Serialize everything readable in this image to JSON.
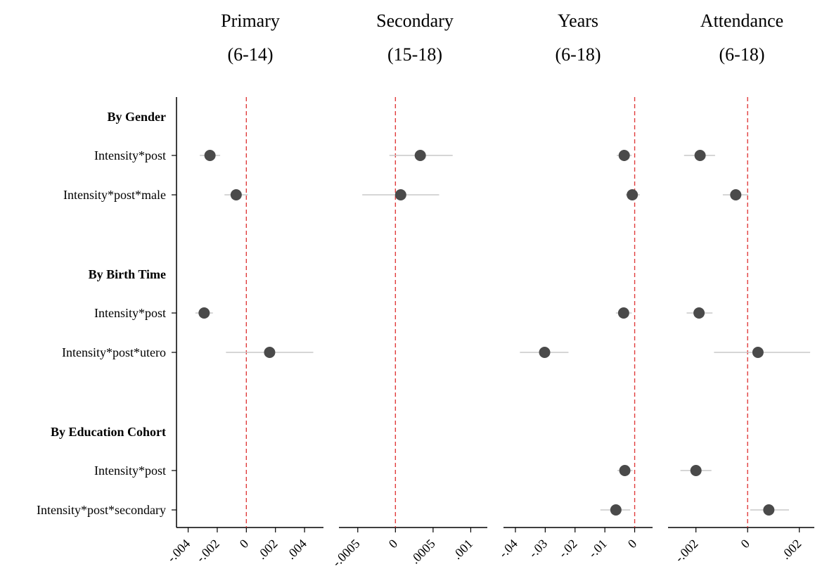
{
  "chart_data": {
    "type": "scatter",
    "description_style": "coefficient plot with confidence intervals",
    "rows": [
      {
        "label": "By Gender",
        "is_group": true
      },
      {
        "label": "Intensity*post",
        "is_group": false
      },
      {
        "label": "Intensity*post*male",
        "is_group": false
      },
      {
        "label": "By Birth Time",
        "is_group": true
      },
      {
        "label": "Intensity*post",
        "is_group": false
      },
      {
        "label": "Intensity*post*utero",
        "is_group": false
      },
      {
        "label": "By Education Cohort",
        "is_group": true
      },
      {
        "label": "Intensity*post",
        "is_group": false
      },
      {
        "label": "Intensity*post*secondary",
        "is_group": false
      }
    ],
    "reference_line": 0,
    "reference_line_color": "#e03c3c",
    "marker_color": "#4a4a4a",
    "ci_color": "#c8c8c8",
    "panels": [
      {
        "title": "Primary",
        "subtitle": "(6-14)",
        "xlim": [
          -0.0048,
          0.0053
        ],
        "ticks": [
          -0.004,
          -0.002,
          0,
          0.002,
          0.004
        ],
        "tick_labels": [
          "-.004",
          "-.002",
          "0",
          ".002",
          ".004"
        ],
        "points": [
          {
            "row": 1,
            "est": -0.0025,
            "lo": -0.0032,
            "hi": -0.0018
          },
          {
            "row": 2,
            "est": -0.0007,
            "lo": -0.0015,
            "hi": 0.0001
          },
          {
            "row": 4,
            "est": -0.0029,
            "lo": -0.0035,
            "hi": -0.0023
          },
          {
            "row": 5,
            "est": 0.0016,
            "lo": -0.0014,
            "hi": 0.0046
          }
        ]
      },
      {
        "title": "Secondary",
        "subtitle": "(15-18)",
        "xlim": [
          -0.00075,
          0.00122
        ],
        "ticks": [
          -0.0005,
          0,
          0.0005,
          0.001
        ],
        "tick_labels": [
          "-.0005",
          "0",
          ".0005",
          ".001"
        ],
        "points": [
          {
            "row": 1,
            "est": 0.00033,
            "lo": -8e-05,
            "hi": 0.00076
          },
          {
            "row": 2,
            "est": 7e-05,
            "lo": -0.00044,
            "hi": 0.00058
          }
        ]
      },
      {
        "title": "Years",
        "subtitle": "(6-18)",
        "xlim": [
          -0.044,
          0.006
        ],
        "ticks": [
          -0.04,
          -0.03,
          -0.02,
          -0.01,
          0
        ],
        "tick_labels": [
          "-.04",
          "-.03",
          "-.02",
          "-.01",
          "0"
        ],
        "points": [
          {
            "row": 1,
            "est": -0.0035,
            "lo": -0.006,
            "hi": -0.001
          },
          {
            "row": 2,
            "est": -0.0008,
            "lo": -0.003,
            "hi": 0.0017
          },
          {
            "row": 4,
            "est": -0.0037,
            "lo": -0.0063,
            "hi": -0.001
          },
          {
            "row": 5,
            "est": -0.0302,
            "lo": -0.0385,
            "hi": -0.0222
          },
          {
            "row": 7,
            "est": -0.0033,
            "lo": -0.0058,
            "hi": -0.0007
          },
          {
            "row": 8,
            "est": -0.0063,
            "lo": -0.0115,
            "hi": -0.0015
          }
        ]
      },
      {
        "title": "Attendance",
        "subtitle": "(6-18)",
        "xlim": [
          -0.00308,
          0.00258
        ],
        "ticks": [
          -0.002,
          0,
          0.002
        ],
        "tick_labels": [
          "-.002",
          "0",
          ".002"
        ],
        "points": [
          {
            "row": 1,
            "est": -0.00184,
            "lo": -0.00246,
            "hi": -0.00126
          },
          {
            "row": 2,
            "est": -0.00046,
            "lo": -0.00096,
            "hi": 2e-05
          },
          {
            "row": 4,
            "est": -0.00188,
            "lo": -0.00236,
            "hi": -0.00136
          },
          {
            "row": 5,
            "est": 0.0004,
            "lo": -0.0013,
            "hi": 0.00242
          },
          {
            "row": 7,
            "est": -0.002,
            "lo": -0.0026,
            "hi": -0.0014
          },
          {
            "row": 8,
            "est": 0.00082,
            "lo": 0.0001,
            "hi": 0.0016
          }
        ]
      }
    ]
  }
}
